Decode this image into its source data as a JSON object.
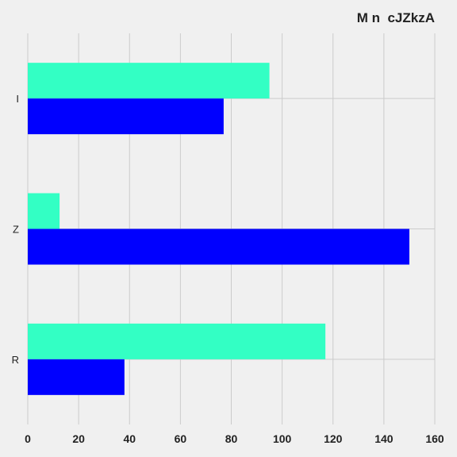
{
  "chart_data": {
    "type": "bar",
    "orientation": "horizontal",
    "title": "M n  cJZkzA",
    "categories": [
      "I",
      "Z",
      "R"
    ],
    "series": [
      {
        "color": "#33ffc4",
        "values": [
          95,
          12.5,
          117
        ]
      },
      {
        "color": "#0000ff",
        "values": [
          77,
          150,
          38
        ]
      }
    ],
    "xlim": [
      0,
      160
    ],
    "xticks": [
      0,
      20,
      40,
      60,
      80,
      100,
      120,
      140,
      160
    ],
    "grid": true,
    "legend": "none",
    "background": "#f0f0f0"
  }
}
